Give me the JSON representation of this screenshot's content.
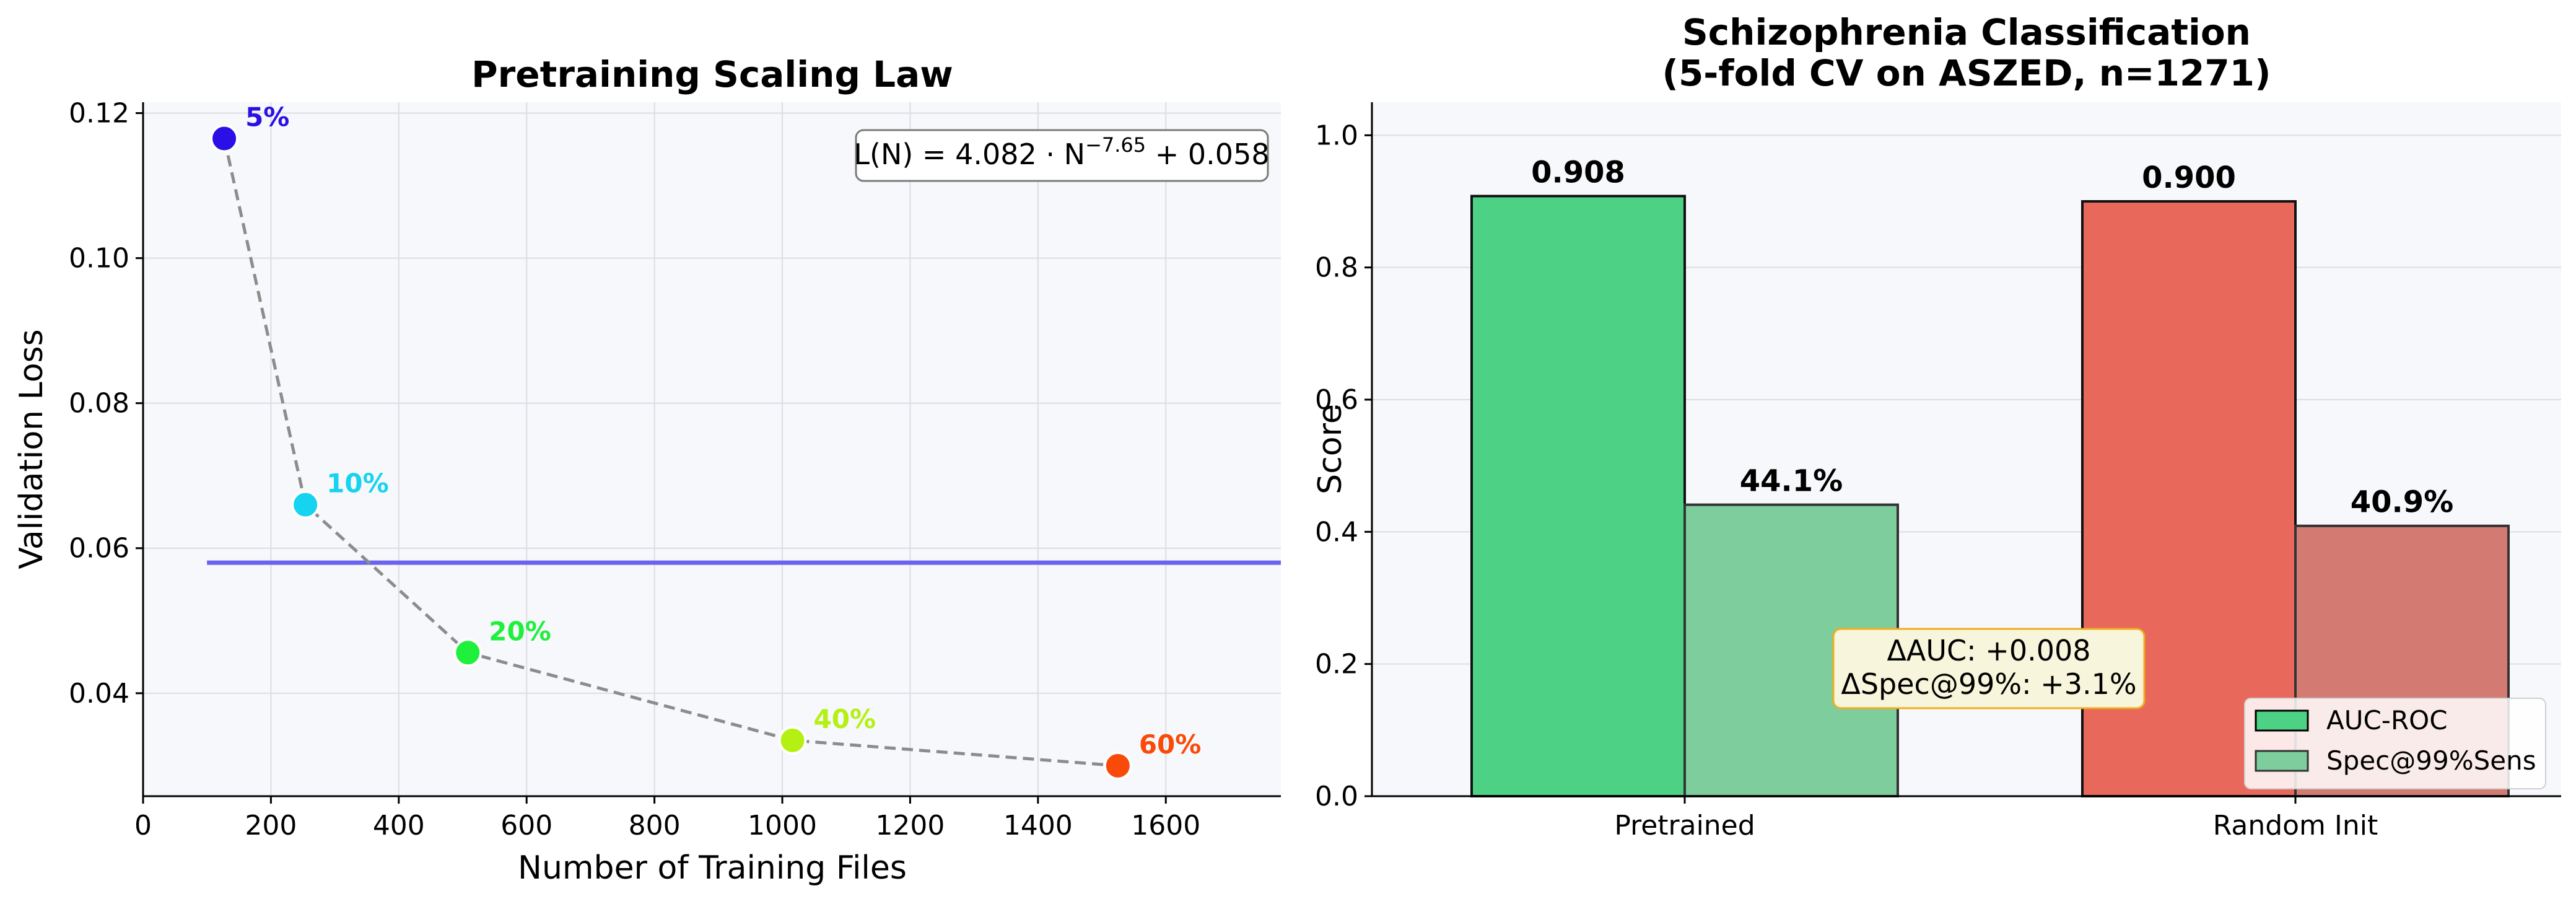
{
  "chart_data": [
    {
      "type": "scatter",
      "title": "Pretraining Scaling Law",
      "xlabel": "Number of Training Files",
      "ylabel": "Validation Loss",
      "xlim": [
        0,
        1780
      ],
      "ylim": [
        0.0258,
        0.1215
      ],
      "xticks": [
        0,
        200,
        400,
        600,
        800,
        1000,
        1200,
        1400,
        1600
      ],
      "yticks": [
        0.04,
        0.06,
        0.08,
        0.1,
        0.12
      ],
      "grid": true,
      "points": [
        {
          "x": 127,
          "y": 0.1165,
          "label": "5%",
          "color": "#2a0fe6"
        },
        {
          "x": 254,
          "y": 0.066,
          "label": "10%",
          "color": "#16d3f0"
        },
        {
          "x": 508,
          "y": 0.0456,
          "label": "20%",
          "color": "#1ef03c"
        },
        {
          "x": 1016,
          "y": 0.0335,
          "label": "40%",
          "color": "#b5f014"
        },
        {
          "x": 1525,
          "y": 0.03,
          "label": "60%",
          "color": "#fa4a0a"
        }
      ],
      "asymptote": {
        "y": 0.058,
        "x_from": 100,
        "x_to": 1780,
        "color": "#6a63f0"
      },
      "formula": "L(N) = 4.082 · N^(−7.65) + 0.058",
      "formula_parts": {
        "lhs": "L(N) = 4.082 · N",
        "exp": "−7.65",
        "rhs": " + 0.058"
      }
    },
    {
      "type": "bar",
      "title": "Schizophrenia Classification",
      "subtitle": "(5-fold CV on ASZED, n=1271)",
      "xlabel": "",
      "ylabel": "Score",
      "ylim": [
        0,
        1.05
      ],
      "yticks": [
        0.0,
        0.2,
        0.4,
        0.6,
        0.8,
        1.0
      ],
      "categories": [
        "Pretrained",
        "Random Init"
      ],
      "series": [
        {
          "name": "AUC-ROC",
          "values": [
            0.908,
            0.9
          ],
          "labels": [
            "0.908",
            "0.900"
          ]
        },
        {
          "name": "Spec@99%Sens",
          "values": [
            0.441,
            0.409
          ],
          "labels": [
            "44.1%",
            "40.9%"
          ]
        }
      ],
      "bar_colors": {
        "pretrained_auc": "#4dd285",
        "pretrained_spec": "#7ecd9d",
        "random_auc": "#e9685c",
        "random_spec": "#d37b73"
      },
      "legend": {
        "placement": "lower-right",
        "swatch_colors": [
          "#4dd285",
          "#7ecd9d"
        ]
      },
      "annotation": {
        "line1": "ΔAUC: +0.008",
        "line2": "ΔSpec@99%: +3.1%"
      },
      "grid": true
    }
  ]
}
